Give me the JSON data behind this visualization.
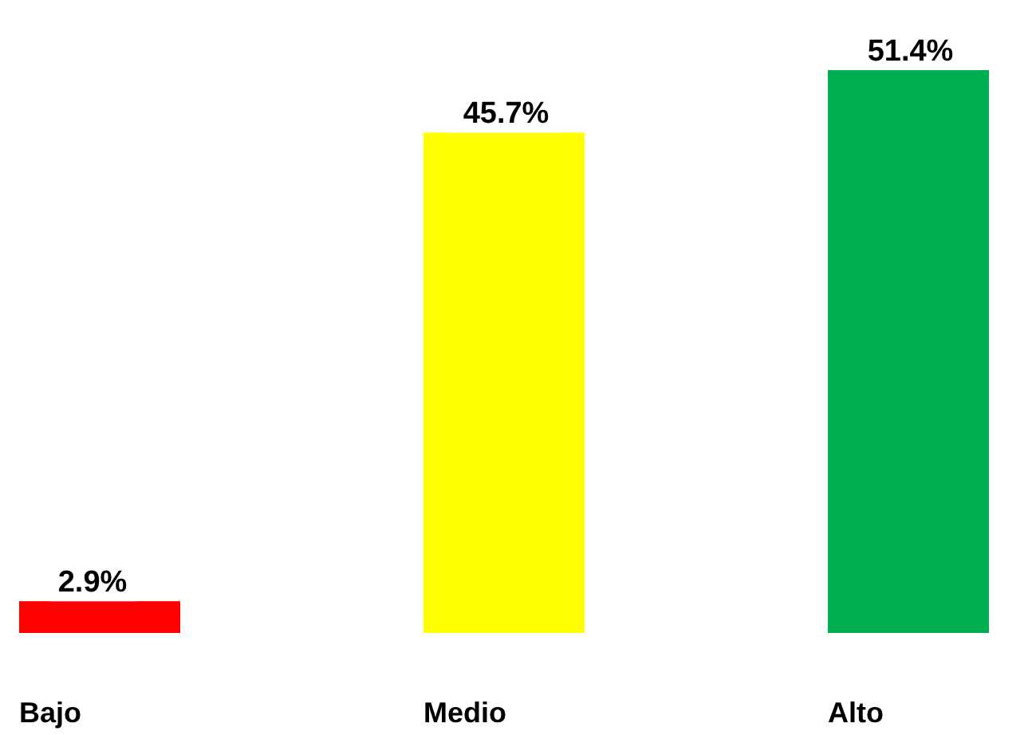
{
  "chart_data": {
    "type": "bar",
    "categories": [
      "Bajo",
      "Medio",
      "Alto"
    ],
    "values": [
      2.9,
      45.7,
      51.4
    ],
    "colors": [
      "#ff0000",
      "#ffff00",
      "#00b050"
    ],
    "value_labels": [
      "2.9%",
      "45.7%",
      "51.4%"
    ]
  }
}
